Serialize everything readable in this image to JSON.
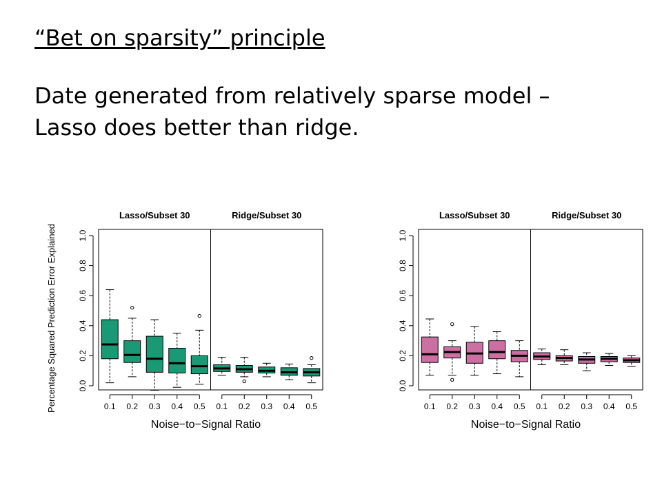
{
  "slide": {
    "heading": "“Bet on sparsity” principle",
    "body_line1": "Date generated from relatively sparse model –",
    "body_line2": "Lasso does better than ridge."
  },
  "chart_data": [
    {
      "type": "boxplot",
      "ylabel": "Percentage Squared Prediction Error Explained",
      "xlabel": "Noise−to−Signal Ratio",
      "ylim": [
        0.0,
        1.0
      ],
      "yticks": [
        "0.0",
        "0.2",
        "0.4",
        "0.6",
        "0.8",
        "1.0"
      ],
      "color": "#1a9a74",
      "panels": [
        {
          "title": "Lasso/Subset 30",
          "categories": [
            "0.1",
            "0.2",
            "0.3",
            "0.4",
            "0.5"
          ],
          "boxes": [
            {
              "lo": 0.02,
              "q1": 0.18,
              "med": 0.275,
              "q3": 0.44,
              "hi": 0.64,
              "out": []
            },
            {
              "lo": 0.06,
              "q1": 0.155,
              "med": 0.205,
              "q3": 0.3,
              "hi": 0.45,
              "out": [
                0.52
              ]
            },
            {
              "lo": -0.03,
              "q1": 0.09,
              "med": 0.18,
              "q3": 0.33,
              "hi": 0.44,
              "out": []
            },
            {
              "lo": -0.01,
              "q1": 0.085,
              "med": 0.15,
              "q3": 0.25,
              "hi": 0.35,
              "out": []
            },
            {
              "lo": 0.01,
              "q1": 0.08,
              "med": 0.13,
              "q3": 0.2,
              "hi": 0.37,
              "out": [
                0.465
              ]
            }
          ]
        },
        {
          "title": "Ridge/Subset 30",
          "categories": [
            "0.1",
            "0.2",
            "0.3",
            "0.4",
            "0.5"
          ],
          "boxes": [
            {
              "lo": 0.07,
              "q1": 0.095,
              "med": 0.115,
              "q3": 0.14,
              "hi": 0.19,
              "out": []
            },
            {
              "lo": 0.06,
              "q1": 0.09,
              "med": 0.11,
              "q3": 0.135,
              "hi": 0.19,
              "out": [
                0.03
              ]
            },
            {
              "lo": 0.06,
              "q1": 0.085,
              "med": 0.1,
              "q3": 0.125,
              "hi": 0.15,
              "out": []
            },
            {
              "lo": 0.04,
              "q1": 0.07,
              "med": 0.09,
              "q3": 0.12,
              "hi": 0.145,
              "out": []
            },
            {
              "lo": 0.02,
              "q1": 0.065,
              "med": 0.09,
              "q3": 0.115,
              "hi": 0.14,
              "out": [
                0.185
              ]
            }
          ]
        }
      ]
    },
    {
      "type": "boxplot",
      "ylabel": "",
      "xlabel": "Noise−to−Signal Ratio",
      "ylim": [
        0.0,
        1.0
      ],
      "yticks": [
        "0.0",
        "0.2",
        "0.4",
        "0.6",
        "0.8",
        "1.0"
      ],
      "color": "#cc6fa3",
      "panels": [
        {
          "title": "Lasso/Subset 30",
          "categories": [
            "0.1",
            "0.2",
            "0.3",
            "0.4",
            "0.5"
          ],
          "boxes": [
            {
              "lo": 0.07,
              "q1": 0.155,
              "med": 0.21,
              "q3": 0.325,
              "hi": 0.445,
              "out": []
            },
            {
              "lo": 0.07,
              "q1": 0.185,
              "med": 0.225,
              "q3": 0.26,
              "hi": 0.3,
              "out": [
                0.41,
                0.04
              ]
            },
            {
              "lo": 0.07,
              "q1": 0.15,
              "med": 0.215,
              "q3": 0.29,
              "hi": 0.395,
              "out": []
            },
            {
              "lo": 0.08,
              "q1": 0.18,
              "med": 0.225,
              "q3": 0.3,
              "hi": 0.36,
              "out": []
            },
            {
              "lo": 0.06,
              "q1": 0.16,
              "med": 0.2,
              "q3": 0.235,
              "hi": 0.3,
              "out": []
            }
          ]
        },
        {
          "title": "Ridge/Subset 30",
          "categories": [
            "0.1",
            "0.2",
            "0.3",
            "0.4",
            "0.5"
          ],
          "boxes": [
            {
              "lo": 0.14,
              "q1": 0.175,
              "med": 0.195,
              "q3": 0.22,
              "hi": 0.245,
              "out": []
            },
            {
              "lo": 0.14,
              "q1": 0.165,
              "med": 0.185,
              "q3": 0.2,
              "hi": 0.24,
              "out": []
            },
            {
              "lo": 0.1,
              "q1": 0.15,
              "med": 0.175,
              "q3": 0.195,
              "hi": 0.22,
              "out": []
            },
            {
              "lo": 0.135,
              "q1": 0.16,
              "med": 0.18,
              "q3": 0.195,
              "hi": 0.215,
              "out": []
            },
            {
              "lo": 0.13,
              "q1": 0.155,
              "med": 0.17,
              "q3": 0.185,
              "hi": 0.2,
              "out": []
            }
          ]
        }
      ]
    }
  ]
}
